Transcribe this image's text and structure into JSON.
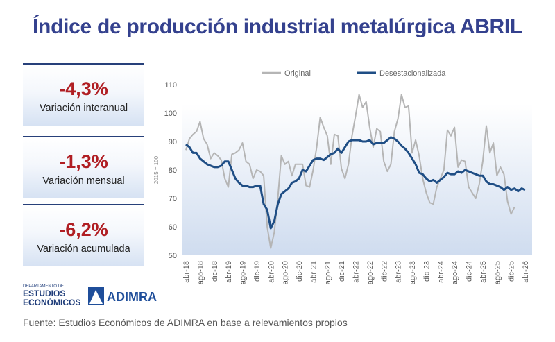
{
  "header": {
    "title": "Índice de producción industrial metalúrgica ABRIL"
  },
  "kpis": [
    {
      "value": "-4,3%",
      "label": "Variación interanual"
    },
    {
      "value": "-1,3%",
      "label": "Variación mensual"
    },
    {
      "value": "-6,2%",
      "label": "Variación acumulada"
    }
  ],
  "chart_data": {
    "type": "line",
    "y_label": "2015 = 100",
    "categories": [
      "abr-18",
      null,
      null,
      null,
      "ago-18",
      null,
      null,
      null,
      "dic-18",
      null,
      null,
      null,
      "abr-19",
      null,
      null,
      null,
      "ago-19",
      null,
      null,
      null,
      "dic-19",
      null,
      null,
      null,
      "abr-20",
      null,
      null,
      null,
      "ago-20",
      null,
      null,
      null,
      "dic-20",
      null,
      null,
      null,
      "abr-21",
      null,
      null,
      null,
      "ago-21",
      null,
      null,
      null,
      "dic-21",
      null,
      null,
      null,
      "abr-22",
      null,
      null,
      null,
      "ago-22",
      null,
      null,
      null,
      "dic-22",
      null,
      null,
      null,
      "abr-23",
      null,
      null,
      null,
      "ago-23",
      null,
      null,
      null,
      "dic-23",
      null,
      null,
      null,
      "abr-24",
      null,
      null,
      null,
      "ago-24",
      null,
      null,
      null,
      "dic-24",
      null,
      null,
      null,
      "abr-25",
      null,
      null,
      null,
      "ago-25",
      null,
      null,
      null,
      "dic-25",
      null,
      null,
      null,
      "abr-26"
    ],
    "series": [
      {
        "name": "Original",
        "color": "#b5b5b5",
        "values": [
          87,
          91,
          92.5,
          93.5,
          97,
          91,
          89,
          84,
          86,
          85,
          83.5,
          77,
          74,
          85.5,
          86,
          87,
          89.5,
          83,
          82,
          77,
          80,
          79.5,
          78,
          60,
          52.5,
          58,
          70,
          85,
          82,
          83,
          78,
          82,
          82,
          82,
          74.5,
          74,
          80,
          88,
          98.5,
          95,
          92,
          82,
          92.5,
          92,
          80.5,
          77,
          82,
          92,
          99,
          106.5,
          102,
          104,
          95,
          88,
          94.5,
          93.5,
          83,
          79.5,
          82,
          93.5,
          98,
          106.5,
          102,
          102.5,
          86,
          90.5,
          85,
          77,
          72,
          68.5,
          68,
          74,
          77,
          80,
          94,
          92,
          95,
          81,
          83.5,
          83,
          74,
          72,
          70,
          75,
          83,
          95.5,
          86,
          89.5,
          78,
          81,
          78.5,
          69,
          64.5,
          67,
          null,
          null,
          null
        ]
      },
      {
        "name": "Desestacionalizada",
        "color": "#1f4e85",
        "values": [
          89,
          88,
          86,
          86,
          84,
          83,
          82,
          81.5,
          81,
          81,
          81.5,
          83,
          83,
          80,
          77,
          75.5,
          74.5,
          74.5,
          74,
          74,
          74.5,
          74.5,
          68,
          66,
          59.5,
          62,
          68,
          71.5,
          72.5,
          73.5,
          75.5,
          76,
          77,
          80,
          79.5,
          81.5,
          83.5,
          84,
          84,
          83.5,
          84.5,
          85.5,
          86,
          87.5,
          86,
          88,
          90,
          90.5,
          90.5,
          90.5,
          90,
          90,
          90.5,
          89,
          89.5,
          89.5,
          89.5,
          90.5,
          91.5,
          91,
          90,
          88.5,
          87.5,
          86,
          84,
          82,
          79,
          78.5,
          77,
          76,
          76.5,
          75.5,
          76.5,
          77.5,
          79,
          78.5,
          78.5,
          79.5,
          79,
          80,
          79.5,
          79,
          78.5,
          78,
          78,
          76,
          75,
          75,
          74.5,
          74,
          73,
          74,
          73,
          73.5,
          72.5,
          73.5,
          73
        ]
      }
    ],
    "ylim": [
      50,
      110
    ],
    "yticks": [
      50,
      60,
      70,
      80,
      90,
      100,
      110
    ],
    "grid": false,
    "legend": "top"
  },
  "logos": {
    "dept_line1": "DEPARTAMENTO DE",
    "dept_line2": "ESTUDIOS",
    "dept_line3": "ECONÓMICOS",
    "brand": "ADIMRA"
  },
  "footer": {
    "source": "Fuente: Estudios Económicos de ADIMRA en base a relevamientos propios"
  }
}
